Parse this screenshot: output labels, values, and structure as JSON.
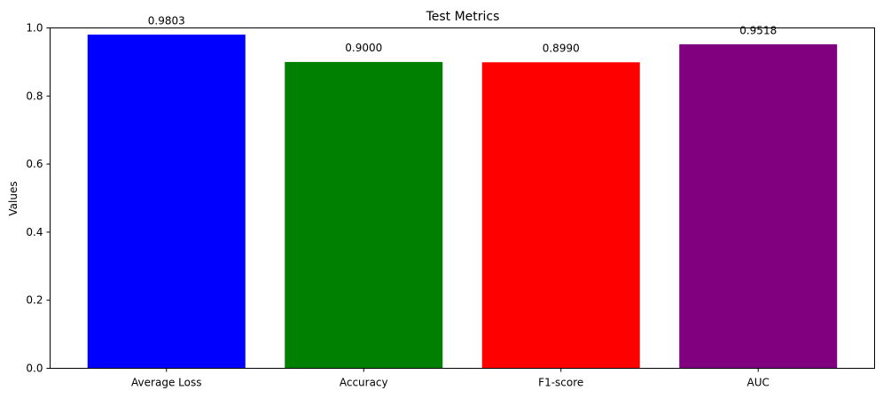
{
  "chart_data": {
    "type": "bar",
    "title": "Test Metrics",
    "xlabel": "",
    "ylabel": "Values",
    "categories": [
      "Average Loss",
      "Accuracy",
      "F1-score",
      "AUC"
    ],
    "values": [
      0.9803,
      0.9,
      0.899,
      0.9518
    ],
    "value_labels": [
      "0.9803",
      "0.9000",
      "0.8990",
      "0.9518"
    ],
    "bar_colors": [
      "#0000ff",
      "#008000",
      "#ff0000",
      "#800080"
    ],
    "ylim": [
      0,
      1.0
    ],
    "yticks": [
      0.0,
      0.2,
      0.4,
      0.6,
      0.8,
      1.0
    ],
    "ytick_labels": [
      "0.0",
      "0.2",
      "0.4",
      "0.6",
      "0.8",
      "1.0"
    ],
    "grid": false,
    "legend": "none"
  }
}
